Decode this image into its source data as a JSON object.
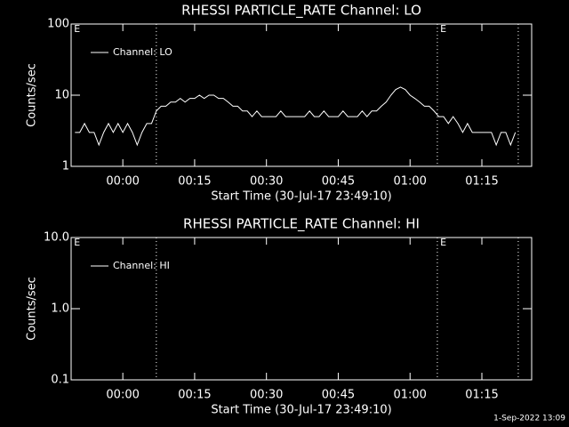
{
  "chart_data": [
    {
      "type": "line",
      "title": "RHESSI PARTICLE_RATE Channel: LO",
      "ylabel": "Counts/sec",
      "xlabel": "Start Time (30-Jul-17 23:49:10)",
      "log_y": true,
      "legend": "upper left",
      "color": "#ffffff",
      "xlim": [
        -10.8,
        85.4
      ],
      "xticks": [
        {
          "value": 0,
          "label": "00:00"
        },
        {
          "value": 15,
          "label": "00:15"
        },
        {
          "value": 30,
          "label": "00:30"
        },
        {
          "value": 45,
          "label": "00:45"
        },
        {
          "value": 60,
          "label": "01:00"
        },
        {
          "value": 75,
          "label": "01:15"
        }
      ],
      "ylim": [
        1,
        100
      ],
      "yticks": [
        1,
        10,
        100
      ],
      "vlines": [
        7,
        65.7,
        82.6
      ],
      "annotations": [
        {
          "x": -10.2,
          "text": "E"
        },
        {
          "x": 66.3,
          "text": "E"
        }
      ],
      "series": [
        {
          "name": "Channel: LO",
          "color": "#ffffff",
          "x": [
            -10,
            -9,
            -8,
            -7,
            -6,
            -5,
            -4,
            -3,
            -2,
            -1,
            0,
            1,
            2,
            3,
            4,
            5,
            6,
            7,
            8,
            9,
            10,
            11,
            12,
            13,
            14,
            15,
            16,
            17,
            18,
            19,
            20,
            21,
            22,
            23,
            24,
            25,
            26,
            27,
            28,
            29,
            30,
            31,
            32,
            33,
            34,
            35,
            36,
            37,
            38,
            39,
            40,
            41,
            42,
            43,
            44,
            45,
            46,
            47,
            48,
            49,
            50,
            51,
            52,
            53,
            54,
            55,
            56,
            57,
            58,
            59,
            60,
            61,
            62,
            63,
            64,
            65,
            66,
            67,
            68,
            69,
            70,
            71,
            72,
            73,
            74,
            75,
            76,
            77,
            78,
            79,
            80,
            81,
            82
          ],
          "values": [
            3,
            3,
            4,
            3,
            3,
            2,
            3,
            4,
            3,
            4,
            3,
            4,
            3,
            2,
            3,
            4,
            4,
            6,
            7,
            7,
            8,
            8,
            9,
            8,
            9,
            9,
            10,
            9,
            10,
            10,
            9,
            9,
            8,
            7,
            7,
            6,
            6,
            5,
            6,
            5,
            5,
            5,
            5,
            6,
            5,
            5,
            5,
            5,
            5,
            6,
            5,
            5,
            6,
            5,
            5,
            5,
            6,
            5,
            5,
            5,
            6,
            5,
            6,
            6,
            7,
            8,
            10,
            12,
            13,
            12,
            10,
            9,
            8,
            7,
            7,
            6,
            5,
            5,
            4,
            5,
            4,
            3,
            4,
            3,
            3,
            3,
            3,
            3,
            2,
            3,
            3,
            2,
            3
          ]
        }
      ]
    },
    {
      "type": "line",
      "title": "RHESSI PARTICLE_RATE Channel: HI",
      "ylabel": "Counts/sec",
      "xlabel": "Start Time (30-Jul-17 23:49:10)",
      "log_y": true,
      "legend": "upper left",
      "color": "#ffffff",
      "xlim": [
        -10.8,
        85.4
      ],
      "xticks": [
        {
          "value": 0,
          "label": "00:00"
        },
        {
          "value": 15,
          "label": "00:15"
        },
        {
          "value": 30,
          "label": "00:30"
        },
        {
          "value": 45,
          "label": "00:45"
        },
        {
          "value": 60,
          "label": "01:00"
        },
        {
          "value": 75,
          "label": "01:15"
        }
      ],
      "ylim": [
        0.1,
        10
      ],
      "yticks": [
        0.1,
        {
          "value": 1,
          "label": "1.0"
        },
        {
          "value": 10,
          "label": "10.0"
        }
      ],
      "vlines": [
        7,
        65.7,
        82.6
      ],
      "annotations": [
        {
          "x": -10.2,
          "text": "E"
        },
        {
          "x": 66.3,
          "text": "E"
        }
      ],
      "series": [
        {
          "name": "Channel: HI",
          "color": "#ffffff",
          "x": [],
          "values": []
        }
      ]
    }
  ],
  "footer": "1-Sep-2022 13:09"
}
